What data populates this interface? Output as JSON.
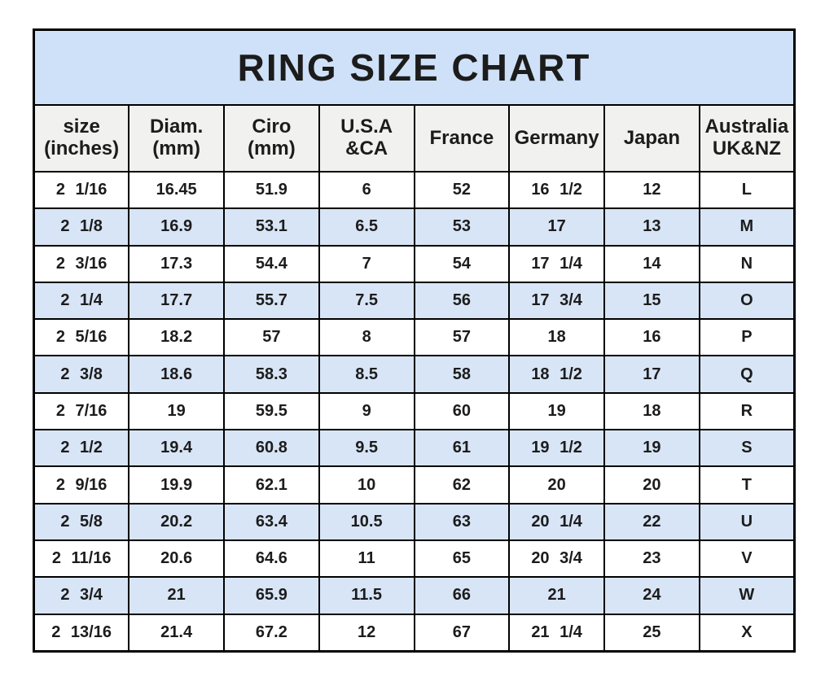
{
  "chart_data": {
    "type": "table",
    "title": "RING SIZE CHART",
    "columns": [
      "size\n(inches)",
      "Diam.\n(mm)",
      "Ciro\n(mm)",
      "U.S.A\n&CA",
      "France",
      "Germany",
      "Japan",
      "Australia\nUK&NZ"
    ],
    "rows": [
      [
        "2 1/16",
        "16.45",
        "51.9",
        "6",
        "52",
        "16 1/2",
        "12",
        "L"
      ],
      [
        "2 1/8",
        "16.9",
        "53.1",
        "6.5",
        "53",
        "17",
        "13",
        "M"
      ],
      [
        "2 3/16",
        "17.3",
        "54.4",
        "7",
        "54",
        "17 1/4",
        "14",
        "N"
      ],
      [
        "2 1/4",
        "17.7",
        "55.7",
        "7.5",
        "56",
        "17 3/4",
        "15",
        "O"
      ],
      [
        "2 5/16",
        "18.2",
        "57",
        "8",
        "57",
        "18",
        "16",
        "P"
      ],
      [
        "2 3/8",
        "18.6",
        "58.3",
        "8.5",
        "58",
        "18 1/2",
        "17",
        "Q"
      ],
      [
        "2 7/16",
        "19",
        "59.5",
        "9",
        "60",
        "19",
        "18",
        "R"
      ],
      [
        "2 1/2",
        "19.4",
        "60.8",
        "9.5",
        "61",
        "19 1/2",
        "19",
        "S"
      ],
      [
        "2 9/16",
        "19.9",
        "62.1",
        "10",
        "62",
        "20",
        "20",
        "T"
      ],
      [
        "2 5/8",
        "20.2",
        "63.4",
        "10.5",
        "63",
        "20 1/4",
        "22",
        "U"
      ],
      [
        "2 11/16",
        "20.6",
        "64.6",
        "11",
        "65",
        "20 3/4",
        "23",
        "V"
      ],
      [
        "2 3/4",
        "21",
        "65.9",
        "11.5",
        "66",
        "21",
        "24",
        "W"
      ],
      [
        "2 13/16",
        "21.4",
        "67.2",
        "12",
        "67",
        "21 1/4",
        "25",
        "X"
      ]
    ],
    "layout_hints": {
      "row_striping": "odd rows white, even rows light blue",
      "grid": "on"
    }
  },
  "colors": {
    "title_bg": "#cfe1f8",
    "header_bg": "#f1f1ef",
    "row_bg": "#ffffff",
    "row_alt_bg": "#d8e5f6",
    "border": "#000000",
    "text": "#1c1c1c"
  }
}
